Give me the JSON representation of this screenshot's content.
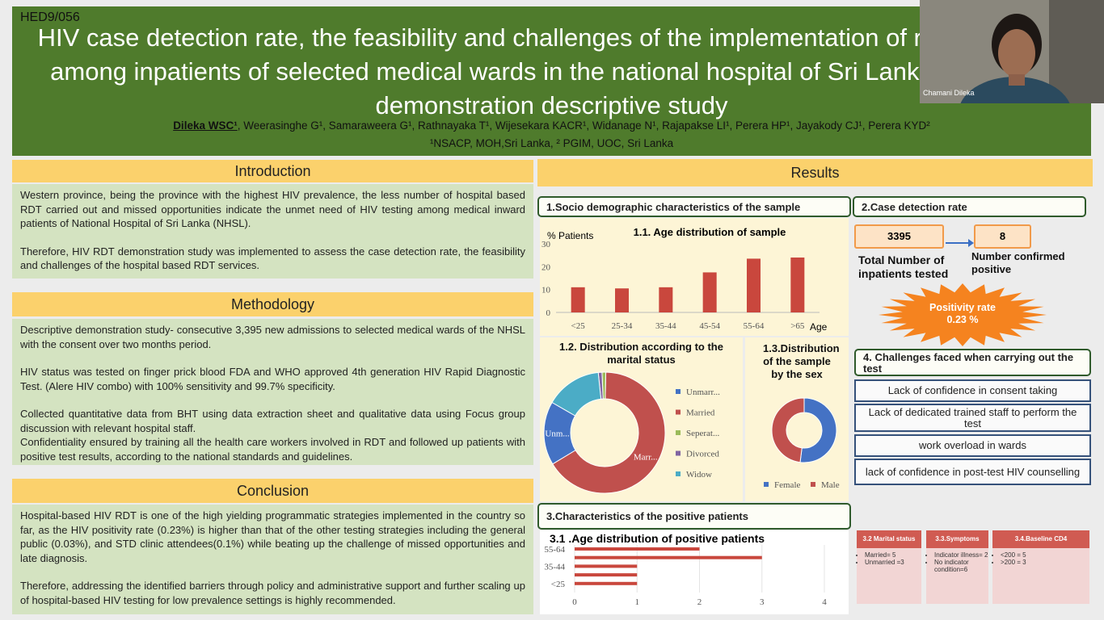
{
  "header": {
    "code": "HED9/056",
    "title": "HIV case detection rate, the feasibility and challenges of the implementation of rapid HIV test among inpatients of selected medical wards in the national hospital of Sri Lanka (NHSL); A demonstration descriptive study",
    "first_author": "Dileka WSC¹",
    "other_authors": ", Weerasinghe G¹, Samaraweera G¹, Rathnayaka T¹, Wijesekara KACR¹, Widanage N¹, Rajapakse LI¹, Perera HP¹, Jayakody CJ¹, Perera KYD²",
    "affiliations": "¹NSACP, MOH,Sri Lanka, ² PGIM, UOC, Sri Lanka"
  },
  "webcam": {
    "name": "Chamani Dileka"
  },
  "introduction": {
    "heading": "Introduction",
    "paragraphs": [
      "Western province, being the province with the highest HIV prevalence, the less number of hospital based RDT carried out and missed opportunities indicate the unmet need of HIV testing among medical inward patients of National Hospital of Sri Lanka (NHSL).",
      "Therefore, HIV RDT demonstration study was implemented to assess the case detection rate, the feasibility and challenges of the hospital based RDT services."
    ]
  },
  "methodology": {
    "heading": "Methodology",
    "paragraphs": [
      "Descriptive demonstration study- consecutive 3,395 new admissions to selected medical wards of the NHSL with the consent over two months period.",
      "HIV status was tested on finger prick blood FDA and WHO approved 4th generation HIV Rapid Diagnostic Test. (Alere HIV combo) with 100% sensitivity and 99.7% specificity.",
      "Collected quantitative data from BHT using data extraction sheet and qualitative data using Focus group discussion with relevant hospital staff.",
      "Confidentiality ensured by training all the health care workers involved in RDT and followed up patients with positive test results, according to the national standards and guidelines."
    ]
  },
  "conclusion": {
    "heading": "Conclusion",
    "paragraphs": [
      "Hospital-based HIV RDT is one of the high yielding programmatic strategies implemented in the country so far, as the HIV positivity rate (0.23%) is higher than that of the other testing strategies including the general public (0.03%), and STD clinic attendees(0.1%) while beating up the challenge of missed opportunities and late diagnosis.",
      "Therefore, addressing the identified barriers through policy and administrative support and further scaling up of hospital-based HIV testing for low prevalence settings is highly recommended."
    ]
  },
  "results": {
    "heading": "Results",
    "section1": "1.Socio demographic characteristics of the sample",
    "section2": "2.Case detection rate",
    "section3": "3.Characteristics of the positive patients",
    "section4": "4. Challenges faced when carrying out the test"
  },
  "case_detection": {
    "total_tested": 3395,
    "total_label": "Total Number of inpatients tested",
    "confirmed": 8,
    "confirmed_label": "Number confirmed positive",
    "rate_label": "Positivity rate",
    "rate": "0.23 %"
  },
  "challenges": [
    "Lack of confidence in consent taking",
    "Lack of dedicated trained staff to perform the test",
    "work overload in wards",
    "lack of confidence in post-test HIV counselling"
  ],
  "tables": [
    {
      "heading": "3.2 Marital status",
      "items": [
        "Married= 5",
        "Unmarried =3"
      ]
    },
    {
      "heading": "3.3.Symptoms",
      "items": [
        "Indicator illness= 2",
        "No indicator condition=6"
      ]
    },
    {
      "heading": "3.4.Baseline CD4",
      "items": [
        "<200 = 5",
        ">200 = 3"
      ]
    }
  ],
  "chart_data": [
    {
      "type": "bar",
      "title": "1.1. Age distribution of sample",
      "y_label": "% Patients",
      "x_label": "Age",
      "categories": [
        "<25",
        "25-34",
        "35-44",
        "45-54",
        "55-64",
        ">65"
      ],
      "values": [
        11,
        10.5,
        11,
        17.5,
        23.5,
        24
      ],
      "color": "#c9473d",
      "ylim": [
        0,
        30
      ],
      "yticks": [
        0,
        10,
        20,
        30
      ],
      "grid": false
    },
    {
      "type": "donut",
      "title": "1.2. Distribution according to the marital status",
      "categories": [
        "Unmarr...",
        "Married",
        "Seperat...",
        "Divorced",
        "Widow"
      ],
      "values": [
        17,
        66,
        1,
        1,
        15
      ],
      "colors": [
        "#4472c4",
        "#c0504d",
        "#9bbb59",
        "#8064a2",
        "#4bacc6"
      ],
      "data_labels": [
        "Unm...",
        "Marr...",
        null,
        null,
        null
      ],
      "legend": "right"
    },
    {
      "type": "donut",
      "title": "1.3.Distribution of the sample by the sex",
      "categories": [
        "Female",
        "Male"
      ],
      "values": [
        52,
        48
      ],
      "colors": [
        "#4472c4",
        "#c0504d"
      ],
      "legend": "bottom"
    },
    {
      "type": "hbar",
      "title": "3.1 .Age distribution of positive patients",
      "categories": [
        "55-64",
        null,
        "35-44",
        null,
        "<25"
      ],
      "values": [
        2,
        3,
        1,
        1,
        1
      ],
      "color": "#c9473d",
      "xlim": [
        0,
        4
      ],
      "xticks": [
        0,
        1,
        2,
        3,
        4
      ],
      "grid": true
    }
  ]
}
